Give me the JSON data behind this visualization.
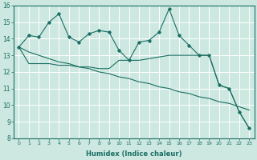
{
  "xlabel": "Humidex (Indice chaleur)",
  "x_ticks": [
    0,
    1,
    2,
    3,
    4,
    5,
    6,
    7,
    8,
    9,
    10,
    11,
    12,
    13,
    14,
    15,
    16,
    17,
    18,
    19,
    20,
    21,
    22,
    23
  ],
  "ylim": [
    8,
    16
  ],
  "yticks": [
    8,
    9,
    10,
    11,
    12,
    13,
    14,
    15,
    16
  ],
  "xlim": [
    -0.5,
    23.5
  ],
  "bg_color": "#cce8e0",
  "line_color": "#1a6e64",
  "grid_color": "#ffffff",
  "series1_x": [
    0,
    1,
    2,
    3,
    4,
    5,
    6,
    7,
    8,
    9,
    10,
    11,
    12,
    13,
    14,
    15,
    16,
    17,
    18,
    19,
    20,
    21,
    22,
    23
  ],
  "series1_y": [
    13.5,
    14.2,
    14.1,
    15.0,
    15.5,
    14.1,
    13.8,
    14.3,
    14.5,
    14.4,
    13.3,
    12.7,
    13.8,
    13.9,
    14.4,
    15.8,
    14.2,
    13.6,
    13.0,
    13.0,
    11.2,
    11.0,
    9.6,
    8.6
  ],
  "series2_x": [
    0,
    1,
    2,
    3,
    4,
    5,
    6,
    7,
    8,
    9,
    10,
    11,
    12,
    13,
    14,
    15,
    16,
    17,
    18,
    19,
    20,
    21,
    22,
    23
  ],
  "series2_y": [
    13.5,
    13.2,
    13.0,
    12.8,
    12.6,
    12.5,
    12.3,
    12.2,
    12.0,
    11.9,
    11.7,
    11.6,
    11.4,
    11.3,
    11.1,
    11.0,
    10.8,
    10.7,
    10.5,
    10.4,
    10.2,
    10.1,
    9.9,
    9.7
  ],
  "series3_x": [
    0,
    1,
    2,
    3,
    4,
    5,
    6,
    7,
    8,
    9,
    10,
    11,
    12,
    13,
    14,
    15,
    16,
    17,
    18,
    19,
    20,
    21,
    22,
    23
  ],
  "series3_y": [
    13.5,
    12.5,
    12.5,
    12.5,
    12.4,
    12.4,
    12.3,
    12.3,
    12.2,
    12.2,
    12.7,
    12.7,
    12.7,
    12.8,
    12.9,
    13.0,
    13.0,
    13.0,
    13.0,
    13.0,
    11.2,
    11.0,
    9.6,
    8.6
  ]
}
